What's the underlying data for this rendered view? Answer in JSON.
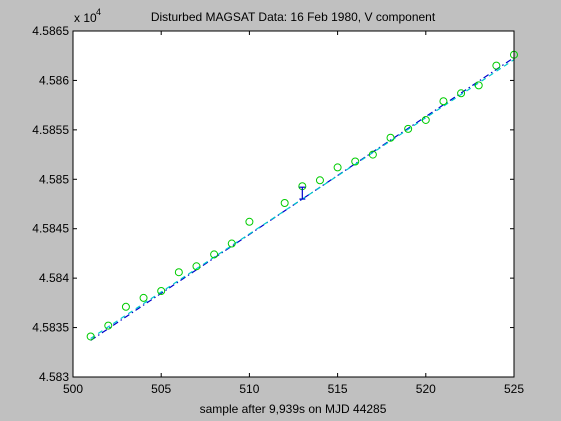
{
  "chart_data": {
    "type": "scatter",
    "title": "Disturbed MAGSAT Data: 16 Feb 1980, V component",
    "xlabel": "sample after 9,939s on MJD 44285",
    "ylabel": "",
    "y_exponent_base": "x 10",
    "y_exponent": "4",
    "xlim": [
      500,
      525
    ],
    "ylim": [
      4.583,
      4.5865
    ],
    "xticks": [
      500,
      505,
      510,
      515,
      520,
      525
    ],
    "xtick_labels": [
      "500",
      "505",
      "510",
      "515",
      "520",
      "525"
    ],
    "yticks": [
      4.583,
      4.5835,
      4.584,
      4.5845,
      4.585,
      4.5855,
      4.586,
      4.5865
    ],
    "ytick_labels": [
      "4.583",
      "4.5835",
      "4.584",
      "4.5845",
      "4.585",
      "4.5855",
      "4.586",
      "4.5865"
    ],
    "grid": false,
    "series": [
      {
        "type": "scatter",
        "color": "#00cc00",
        "marker": "circle",
        "x": [
          501,
          502,
          503,
          504,
          505,
          506,
          507,
          508,
          509,
          510,
          512,
          513,
          514,
          515,
          516,
          517,
          518,
          519,
          520,
          521,
          522,
          523,
          524,
          525
        ],
        "y": [
          4.58341,
          4.58352,
          4.58371,
          4.5838,
          4.58387,
          4.58406,
          4.58412,
          4.58424,
          4.58435,
          4.58457,
          4.58476,
          4.58493,
          4.58499,
          4.58512,
          4.58518,
          4.58525,
          4.58542,
          4.58551,
          4.5856,
          4.58579,
          4.58587,
          4.58595,
          4.58615,
          4.58626
        ]
      },
      {
        "type": "line",
        "color": "#0000cc",
        "style": "dash-dot",
        "x": [
          501,
          525
        ],
        "y": [
          4.58337,
          4.58623
        ]
      },
      {
        "type": "line",
        "color": "#00cccc",
        "style": "dashed",
        "x": [
          501,
          525
        ],
        "y": [
          4.58339,
          4.58621
        ]
      }
    ],
    "annotations": [
      {
        "type": "errorbar",
        "color": "#0000cc",
        "x": 513,
        "y_low": 4.5848,
        "y_high": 4.58492
      }
    ]
  }
}
